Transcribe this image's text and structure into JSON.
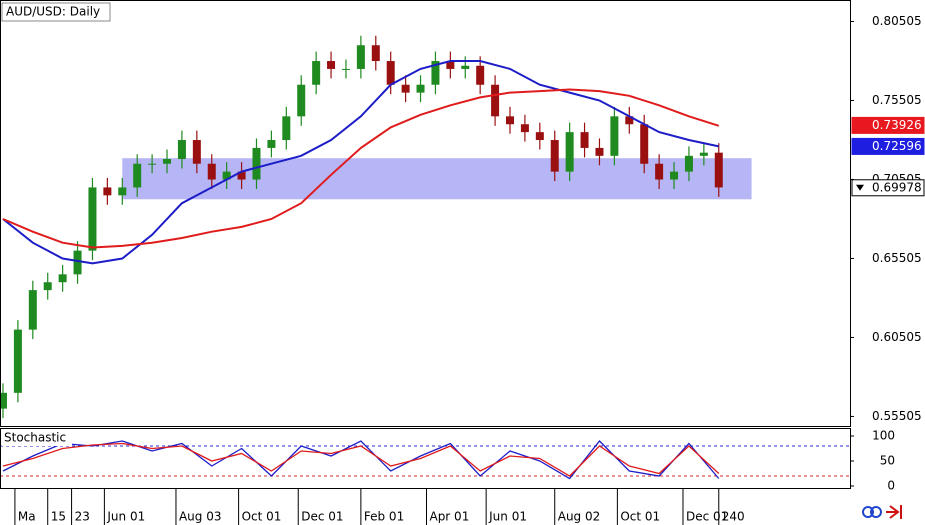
{
  "chart_data": [
    {
      "type": "candlestick",
      "title": "AUD/USD: Daily",
      "up_color": "#1f8a1f",
      "down_color": "#9a1010",
      "x": [
        0,
        5,
        10,
        15,
        20,
        25,
        30,
        35,
        40,
        45,
        50,
        55,
        60,
        65,
        70,
        75,
        80,
        85,
        90,
        95,
        100,
        105,
        110,
        115,
        120,
        125,
        130,
        135,
        140,
        145,
        150,
        155,
        160,
        165,
        170,
        175,
        180,
        185,
        190,
        195,
        200,
        205,
        210,
        215,
        220,
        225,
        230,
        235,
        240
      ],
      "open": [
        0.56,
        0.57,
        0.61,
        0.635,
        0.64,
        0.645,
        0.66,
        0.7,
        0.695,
        0.7,
        0.715,
        0.715,
        0.718,
        0.73,
        0.715,
        0.705,
        0.71,
        0.705,
        0.725,
        0.73,
        0.745,
        0.765,
        0.78,
        0.775,
        0.775,
        0.79,
        0.78,
        0.765,
        0.76,
        0.765,
        0.78,
        0.775,
        0.777,
        0.765,
        0.745,
        0.74,
        0.735,
        0.73,
        0.71,
        0.735,
        0.725,
        0.72,
        0.745,
        0.74,
        0.715,
        0.705,
        0.71,
        0.72,
        0.722
      ],
      "high": [
        0.576,
        0.616,
        0.641,
        0.646,
        0.651,
        0.666,
        0.706,
        0.706,
        0.706,
        0.721,
        0.721,
        0.724,
        0.736,
        0.736,
        0.721,
        0.716,
        0.716,
        0.731,
        0.736,
        0.751,
        0.771,
        0.786,
        0.786,
        0.781,
        0.796,
        0.796,
        0.786,
        0.771,
        0.771,
        0.786,
        0.786,
        0.783,
        0.783,
        0.771,
        0.751,
        0.746,
        0.741,
        0.736,
        0.741,
        0.741,
        0.731,
        0.751,
        0.751,
        0.746,
        0.721,
        0.716,
        0.726,
        0.728,
        0.728
      ],
      "low": [
        0.554,
        0.564,
        0.604,
        0.629,
        0.634,
        0.639,
        0.654,
        0.689,
        0.689,
        0.694,
        0.709,
        0.709,
        0.712,
        0.709,
        0.699,
        0.699,
        0.699,
        0.699,
        0.719,
        0.724,
        0.739,
        0.759,
        0.769,
        0.769,
        0.769,
        0.774,
        0.759,
        0.754,
        0.754,
        0.759,
        0.769,
        0.769,
        0.759,
        0.739,
        0.734,
        0.729,
        0.724,
        0.704,
        0.704,
        0.719,
        0.714,
        0.714,
        0.734,
        0.709,
        0.699,
        0.699,
        0.704,
        0.714,
        0.694
      ],
      "close": [
        0.57,
        0.61,
        0.635,
        0.64,
        0.645,
        0.66,
        0.7,
        0.695,
        0.7,
        0.715,
        0.715,
        0.718,
        0.73,
        0.715,
        0.705,
        0.71,
        0.705,
        0.725,
        0.73,
        0.745,
        0.765,
        0.78,
        0.775,
        0.775,
        0.79,
        0.78,
        0.765,
        0.76,
        0.765,
        0.78,
        0.775,
        0.777,
        0.765,
        0.745,
        0.74,
        0.735,
        0.73,
        0.71,
        0.735,
        0.725,
        0.72,
        0.745,
        0.74,
        0.715,
        0.705,
        0.71,
        0.72,
        0.722,
        0.7
      ],
      "series": [
        {
          "color": "#1d1dc8",
          "x": [
            0,
            10,
            20,
            30,
            40,
            50,
            60,
            70,
            80,
            90,
            100,
            110,
            120,
            130,
            140,
            150,
            160,
            170,
            180,
            190,
            200,
            210,
            220,
            230,
            240
          ],
          "values": [
            0.68,
            0.665,
            0.655,
            0.652,
            0.655,
            0.67,
            0.69,
            0.7,
            0.71,
            0.715,
            0.72,
            0.73,
            0.745,
            0.765,
            0.775,
            0.78,
            0.78,
            0.775,
            0.765,
            0.76,
            0.755,
            0.745,
            0.735,
            0.73,
            0.726
          ]
        },
        {
          "color": "#e01b1b",
          "x": [
            0,
            10,
            20,
            30,
            40,
            50,
            60,
            70,
            80,
            90,
            100,
            110,
            120,
            130,
            140,
            150,
            160,
            170,
            180,
            190,
            200,
            210,
            220,
            230,
            240
          ],
          "values": [
            0.68,
            0.672,
            0.665,
            0.662,
            0.663,
            0.665,
            0.668,
            0.672,
            0.675,
            0.68,
            0.69,
            0.708,
            0.725,
            0.738,
            0.746,
            0.752,
            0.757,
            0.76,
            0.761,
            0.762,
            0.761,
            0.758,
            0.752,
            0.745,
            0.739
          ]
        }
      ],
      "zone": {
        "x": [
          40,
          251
        ],
        "y": [
          0.6925,
          0.7185
        ],
        "color": "#aeaef5"
      },
      "xlim": [
        -1,
        284
      ],
      "ylim": [
        0.549,
        0.818
      ],
      "yticks": [
        0.80505,
        0.75505,
        0.70505,
        0.65505,
        0.60505,
        0.55505
      ],
      "xticks": [
        {
          "value": 4,
          "label": "Ma"
        },
        15,
        23,
        {
          "value": 34,
          "label": "Jun 01"
        },
        {
          "value": 58,
          "label": "Aug 03"
        },
        {
          "value": 79,
          "label": "Oct 01"
        },
        {
          "value": 99,
          "label": "Dec 01"
        },
        {
          "value": 120,
          "label": "Feb 01"
        },
        {
          "value": 142,
          "label": "Apr 01"
        },
        {
          "value": 162,
          "label": "Jun 01"
        },
        {
          "value": 185,
          "label": "Aug 02"
        },
        {
          "value": 206,
          "label": "Oct 01"
        },
        {
          "value": 228,
          "label": "Dec 01"
        },
        240
      ],
      "price_labels": [
        {
          "value": 0.73926,
          "color": "#e8191e"
        },
        {
          "value": 0.72596,
          "color": "#1e1ee0"
        },
        {
          "value": 0.69978,
          "color": "#ffffff"
        }
      ]
    },
    {
      "type": "line",
      "title": "Stochastic",
      "series": [
        {
          "color": "#1d1dc8",
          "x": [
            0,
            10,
            20,
            30,
            40,
            50,
            60,
            70,
            80,
            90,
            100,
            110,
            120,
            130,
            140,
            150,
            160,
            170,
            180,
            190,
            200,
            210,
            220,
            230,
            240
          ],
          "values": [
            30,
            60,
            85,
            80,
            90,
            70,
            85,
            40,
            75,
            20,
            80,
            60,
            90,
            30,
            60,
            85,
            20,
            70,
            50,
            15,
            90,
            30,
            20,
            85,
            15
          ]
        },
        {
          "color": "#e01b1b",
          "x": [
            0,
            10,
            20,
            30,
            40,
            50,
            60,
            70,
            80,
            90,
            100,
            110,
            120,
            130,
            140,
            150,
            160,
            170,
            180,
            190,
            200,
            210,
            220,
            230,
            240
          ],
          "values": [
            40,
            55,
            75,
            82,
            85,
            75,
            80,
            50,
            65,
            30,
            70,
            65,
            80,
            40,
            55,
            80,
            30,
            60,
            55,
            20,
            80,
            40,
            25,
            80,
            25
          ]
        }
      ],
      "levels": [
        80,
        20
      ],
      "level_colors": [
        "#2a2ad0",
        "#d02a2a"
      ],
      "xlim": [
        -1,
        284
      ],
      "ylim": [
        -4,
        114
      ],
      "yticks": [
        100,
        50,
        0
      ]
    }
  ]
}
